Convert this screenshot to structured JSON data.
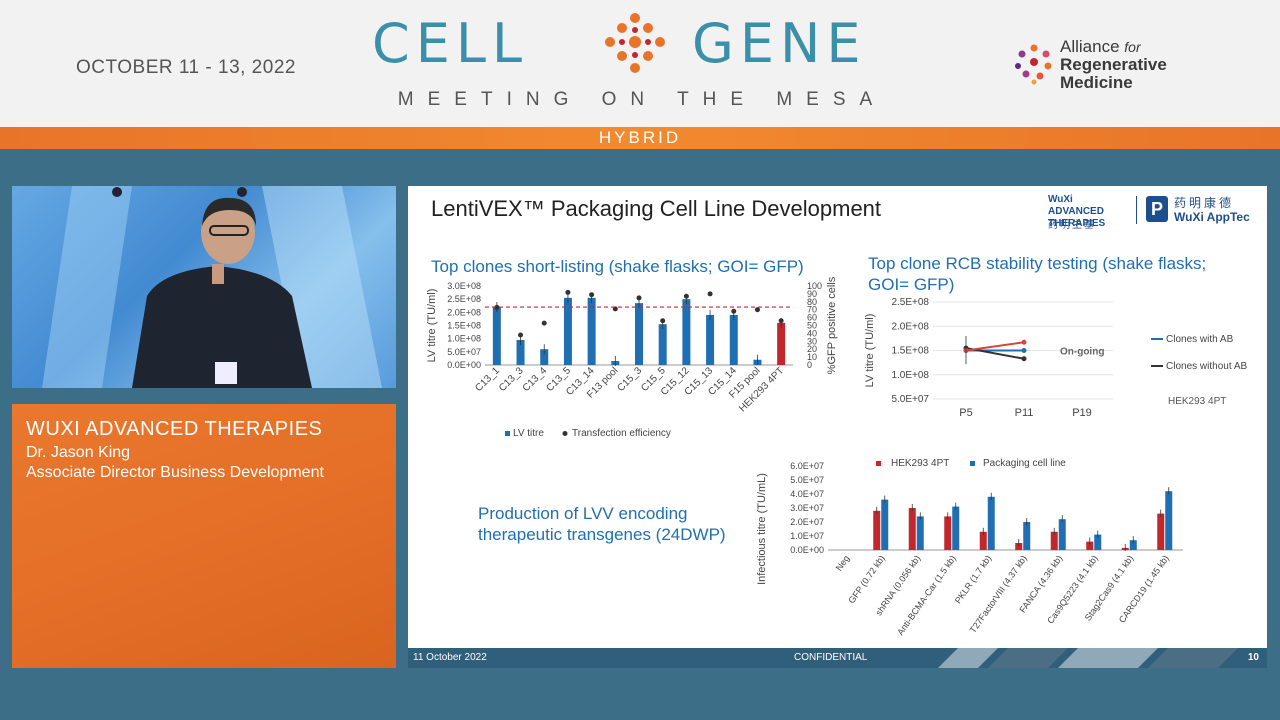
{
  "event": {
    "dates": "OCTOBER 11 - 13, 2022",
    "logo_left": "CELL",
    "logo_right": "GENE",
    "tagline": "MEETING ON THE MESA",
    "format": "HYBRID",
    "partner_logo": [
      "Alliance",
      "for",
      "Regenerative",
      "Medicine"
    ],
    "accent_color": "#3b8fa8",
    "bar_color": "#e8742a"
  },
  "speaker": {
    "company": "WUXI ADVANCED THERAPIES",
    "name": "Dr. Jason King",
    "title": "Associate Director Business Development"
  },
  "slide": {
    "title": "LentiVEX™ Packaging Cell Line Development",
    "brand_logos": [
      "WuXi ADVANCED THERAPIES",
      "药明生基",
      "药明康德",
      "WuXi AppTec"
    ],
    "footer_date": "11 October 2022",
    "footer_center": "CONFIDENTIAL",
    "page_number": "10",
    "section1_title": "Top clones short-listing (shake flasks; GOI= GFP)",
    "section2_title": "Top clone RCB stability testing (shake flasks; GOI= GFP)",
    "section3_title": "Production of LVV encoding therapeutic transgenes (24DWP)"
  },
  "chart_data": [
    {
      "type": "bar",
      "categories": [
        "C13_1",
        "C13_3",
        "C13_4",
        "C13_5",
        "C13_14",
        "F13 pool",
        "C15_3",
        "C15_5",
        "C15_12",
        "C15_13",
        "C15_14",
        "F15 pool",
        "HEK293 4PT"
      ],
      "series": [
        {
          "name": "LV titre",
          "axis": "left",
          "values": [
            220000000.0,
            95000000.0,
            60000000.0,
            255000000.0,
            255000000.0,
            15000000.0,
            235000000.0,
            155000000.0,
            250000000.0,
            190000000.0,
            190000000.0,
            20000000.0,
            160000000.0
          ]
        },
        {
          "name": "Transfection efficiency",
          "axis": "right",
          "values": [
            73,
            38,
            53,
            92,
            89,
            71,
            85,
            56,
            87,
            90,
            68,
            70,
            56
          ]
        }
      ],
      "highlight_color": "#c0282d",
      "bar_color": "#1f6fb2",
      "ylabel": "LV titre (TU/ml)",
      "y2label": "%GFP positive cells",
      "ylim": [
        0,
        300000000.0
      ],
      "y_ticks": [
        "0.0E+00",
        "5.0E+07",
        "1.0E+08",
        "1.5E+08",
        "2.0E+08",
        "2.5E+08",
        "3.0E+08"
      ],
      "y2lim": [
        0,
        100
      ],
      "y2_ticks": [
        "0",
        "10",
        "20",
        "30",
        "40",
        "50",
        "60",
        "70",
        "80",
        "90",
        "100"
      ],
      "reference_line": 220000000.0,
      "legend": [
        "LV titre",
        "Transfection efficiency"
      ]
    },
    {
      "type": "line",
      "x": [
        "P5",
        "P11",
        "P19"
      ],
      "series": [
        {
          "name": "Clones with AB",
          "values": [
            150000000.0,
            150000000.0,
            null
          ],
          "color": "#1f6fb2"
        },
        {
          "name": "Clones without AB",
          "values": [
            155000000.0,
            133000000.0,
            null
          ],
          "color": "#333333"
        },
        {
          "name": "",
          "values": [
            150000000.0,
            167000000.0,
            null
          ],
          "color": "#d8453a"
        }
      ],
      "ylabel": "LV titre (TU/ml)",
      "ylim": [
        50000000.0,
        250000000.0
      ],
      "y_ticks": [
        "5.0E+07",
        "1.0E+08",
        "1.5E+08",
        "2.0E+08",
        "2.5E+08"
      ],
      "annotation": "On-going",
      "note": "HEK293 4PT",
      "legend": [
        "Clones with AB",
        "Clones without AB"
      ]
    },
    {
      "type": "bar",
      "categories": [
        "Neg",
        "GFP (0.72 kb)",
        "shRNA (0.056 kb)",
        "Anti-BCMA-Car (1.5 kb)",
        "PKLR (1.7 kb)",
        "T27FactorVIII (4.37 kb)",
        "FANCA (4.36 kb)",
        "Cas9Q5223 (4.1 kb)",
        "Stag2Cas9 (4.1 kb)",
        "CARCD19 (1.45 kb)"
      ],
      "series": [
        {
          "name": "HEK293 4PT",
          "values": [
            0,
            28000000.0,
            30000000.0,
            24000000.0,
            13000000.0,
            5000000.0,
            13000000.0,
            6000000.0,
            1500000.0,
            26000000.0
          ],
          "color": "#c0282d"
        },
        {
          "name": "Packaging cell line",
          "values": [
            0,
            36000000.0,
            24000000.0,
            31000000.0,
            38000000.0,
            20000000.0,
            22000000.0,
            11000000.0,
            7000000.0,
            42000000.0
          ],
          "color": "#1f6fb2"
        }
      ],
      "ylabel": "Infectious titre (TU/mL)",
      "ylim": [
        0,
        60000000.0
      ],
      "y_ticks": [
        "0.0E+00",
        "1.0E+07",
        "2.0E+07",
        "3.0E+07",
        "4.0E+07",
        "5.0E+07",
        "6.0E+07"
      ],
      "legend": [
        "HEK293 4PT",
        "Packaging cell line"
      ]
    }
  ]
}
